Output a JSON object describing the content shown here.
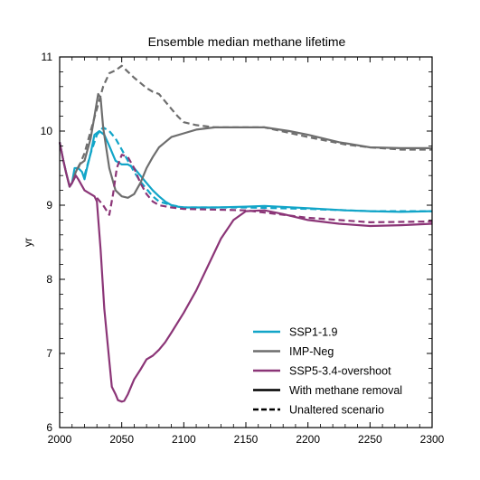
{
  "chart_data": {
    "type": "line",
    "title": "Ensemble median methane lifetime",
    "xlabel": "",
    "ylabel": "yr",
    "xlim": [
      2000,
      2300
    ],
    "ylim": [
      6,
      11
    ],
    "x_ticks": [
      2000,
      2050,
      2100,
      2150,
      2200,
      2250,
      2300
    ],
    "y_ticks": [
      6,
      7,
      8,
      9,
      10,
      11
    ],
    "grid": false,
    "legend_position": "lower-right",
    "series": [
      {
        "name": "SSP1-1.9",
        "color": "#12a5c8",
        "style": "solid",
        "points": [
          [
            2000,
            9.85
          ],
          [
            2003,
            9.6
          ],
          [
            2005,
            9.45
          ],
          [
            2008,
            9.25
          ],
          [
            2010,
            9.3
          ],
          [
            2012,
            9.5
          ],
          [
            2015,
            9.5
          ],
          [
            2018,
            9.45
          ],
          [
            2020,
            9.35
          ],
          [
            2022,
            9.5
          ],
          [
            2025,
            9.7
          ],
          [
            2028,
            9.95
          ],
          [
            2032,
            10.0
          ],
          [
            2036,
            9.95
          ],
          [
            2040,
            9.8
          ],
          [
            2045,
            9.6
          ],
          [
            2050,
            9.55
          ],
          [
            2055,
            9.55
          ],
          [
            2060,
            9.5
          ],
          [
            2065,
            9.4
          ],
          [
            2070,
            9.3
          ],
          [
            2075,
            9.2
          ],
          [
            2080,
            9.12
          ],
          [
            2085,
            9.05
          ],
          [
            2090,
            9.0
          ],
          [
            2095,
            8.98
          ],
          [
            2100,
            8.97
          ],
          [
            2125,
            8.97
          ],
          [
            2150,
            8.98
          ],
          [
            2165,
            8.99
          ],
          [
            2200,
            8.96
          ],
          [
            2230,
            8.93
          ],
          [
            2250,
            8.92
          ],
          [
            2275,
            8.91
          ],
          [
            2300,
            8.92
          ]
        ]
      },
      {
        "name": "SSP1-1.9 (unaltered)",
        "color": "#12a5c8",
        "style": "dashed",
        "points": [
          [
            2020,
            9.4
          ],
          [
            2025,
            9.7
          ],
          [
            2030,
            9.95
          ],
          [
            2035,
            10.05
          ],
          [
            2040,
            10.0
          ],
          [
            2045,
            9.9
          ],
          [
            2050,
            9.75
          ],
          [
            2055,
            9.6
          ],
          [
            2060,
            9.45
          ],
          [
            2065,
            9.32
          ],
          [
            2070,
            9.22
          ],
          [
            2075,
            9.12
          ],
          [
            2080,
            9.05
          ],
          [
            2090,
            9.0
          ],
          [
            2100,
            8.97
          ],
          [
            2150,
            8.97
          ],
          [
            2200,
            8.95
          ],
          [
            2250,
            8.92
          ],
          [
            2300,
            8.92
          ]
        ]
      },
      {
        "name": "IMP-Neg",
        "color": "#6e6e6e",
        "style": "solid",
        "points": [
          [
            2000,
            9.85
          ],
          [
            2003,
            9.6
          ],
          [
            2005,
            9.45
          ],
          [
            2008,
            9.25
          ],
          [
            2010,
            9.3
          ],
          [
            2013,
            9.45
          ],
          [
            2016,
            9.55
          ],
          [
            2020,
            9.6
          ],
          [
            2025,
            9.9
          ],
          [
            2028,
            10.2
          ],
          [
            2031,
            10.5
          ],
          [
            2033,
            10.45
          ],
          [
            2035,
            10.05
          ],
          [
            2040,
            9.5
          ],
          [
            2045,
            9.2
          ],
          [
            2050,
            9.12
          ],
          [
            2055,
            9.1
          ],
          [
            2060,
            9.15
          ],
          [
            2065,
            9.3
          ],
          [
            2070,
            9.5
          ],
          [
            2075,
            9.65
          ],
          [
            2080,
            9.78
          ],
          [
            2085,
            9.85
          ],
          [
            2090,
            9.92
          ],
          [
            2100,
            9.97
          ],
          [
            2110,
            10.02
          ],
          [
            2125,
            10.05
          ],
          [
            2150,
            10.05
          ],
          [
            2165,
            10.05
          ],
          [
            2185,
            10.0
          ],
          [
            2200,
            9.95
          ],
          [
            2225,
            9.85
          ],
          [
            2250,
            9.78
          ],
          [
            2275,
            9.77
          ],
          [
            2300,
            9.77
          ]
        ]
      },
      {
        "name": "IMP-Neg (unaltered)",
        "color": "#6e6e6e",
        "style": "dashed",
        "points": [
          [
            2015,
            9.5
          ],
          [
            2020,
            9.7
          ],
          [
            2025,
            10.0
          ],
          [
            2030,
            10.3
          ],
          [
            2035,
            10.6
          ],
          [
            2040,
            10.78
          ],
          [
            2045,
            10.82
          ],
          [
            2050,
            10.88
          ],
          [
            2055,
            10.8
          ],
          [
            2060,
            10.72
          ],
          [
            2065,
            10.65
          ],
          [
            2070,
            10.58
          ],
          [
            2075,
            10.53
          ],
          [
            2080,
            10.5
          ],
          [
            2085,
            10.4
          ],
          [
            2090,
            10.3
          ],
          [
            2095,
            10.2
          ],
          [
            2100,
            10.12
          ],
          [
            2110,
            10.08
          ],
          [
            2125,
            10.05
          ],
          [
            2150,
            10.05
          ],
          [
            2165,
            10.05
          ],
          [
            2200,
            9.92
          ],
          [
            2230,
            9.82
          ],
          [
            2250,
            9.78
          ],
          [
            2275,
            9.75
          ],
          [
            2300,
            9.75
          ]
        ]
      },
      {
        "name": "SSP5-3.4-overshoot",
        "color": "#8b3577",
        "style": "solid",
        "points": [
          [
            2000,
            9.85
          ],
          [
            2003,
            9.6
          ],
          [
            2005,
            9.45
          ],
          [
            2008,
            9.25
          ],
          [
            2010,
            9.3
          ],
          [
            2013,
            9.4
          ],
          [
            2015,
            9.35
          ],
          [
            2020,
            9.2
          ],
          [
            2025,
            9.15
          ],
          [
            2028,
            9.12
          ],
          [
            2030,
            9.05
          ],
          [
            2033,
            8.4
          ],
          [
            2036,
            7.6
          ],
          [
            2040,
            6.9
          ],
          [
            2042,
            6.55
          ],
          [
            2045,
            6.45
          ],
          [
            2047,
            6.37
          ],
          [
            2050,
            6.35
          ],
          [
            2052,
            6.36
          ],
          [
            2055,
            6.45
          ],
          [
            2060,
            6.65
          ],
          [
            2065,
            6.78
          ],
          [
            2070,
            6.92
          ],
          [
            2075,
            6.97
          ],
          [
            2080,
            7.05
          ],
          [
            2085,
            7.15
          ],
          [
            2090,
            7.28
          ],
          [
            2100,
            7.55
          ],
          [
            2110,
            7.85
          ],
          [
            2120,
            8.2
          ],
          [
            2130,
            8.55
          ],
          [
            2140,
            8.8
          ],
          [
            2150,
            8.92
          ],
          [
            2165,
            8.93
          ],
          [
            2180,
            8.88
          ],
          [
            2200,
            8.8
          ],
          [
            2225,
            8.75
          ],
          [
            2250,
            8.72
          ],
          [
            2275,
            8.73
          ],
          [
            2300,
            8.75
          ]
        ]
      },
      {
        "name": "SSP5-3.4-overshoot (unaltered)",
        "color": "#8b3577",
        "style": "dashed",
        "points": [
          [
            2030,
            9.1
          ],
          [
            2035,
            9.0
          ],
          [
            2040,
            8.87
          ],
          [
            2043,
            9.15
          ],
          [
            2046,
            9.5
          ],
          [
            2050,
            9.68
          ],
          [
            2055,
            9.65
          ],
          [
            2060,
            9.5
          ],
          [
            2065,
            9.3
          ],
          [
            2070,
            9.15
          ],
          [
            2075,
            9.05
          ],
          [
            2080,
            9.0
          ],
          [
            2090,
            8.97
          ],
          [
            2100,
            8.95
          ],
          [
            2150,
            8.93
          ],
          [
            2200,
            8.83
          ],
          [
            2250,
            8.77
          ],
          [
            2300,
            8.78
          ]
        ]
      }
    ],
    "legend": [
      {
        "label": "SSP1-1.9",
        "color": "#12a5c8",
        "style": "solid"
      },
      {
        "label": "IMP-Neg",
        "color": "#6e6e6e",
        "style": "solid"
      },
      {
        "label": "SSP5-3.4-overshoot",
        "color": "#8b3577",
        "style": "solid"
      },
      {
        "label": "With methane removal",
        "color": "#000000",
        "style": "solid"
      },
      {
        "label": "Unaltered scenario",
        "color": "#000000",
        "style": "dashed"
      }
    ]
  }
}
